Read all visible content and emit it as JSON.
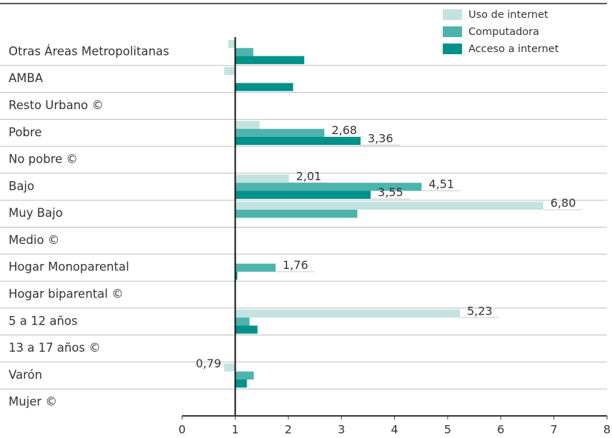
{
  "chart_data": {
    "type": "hbar",
    "categories": [
      "Otras Áreas Metropolitanas",
      "AMBA",
      "Resto Urbano ©",
      "Pobre",
      "No pobre ©",
      "Bajo",
      "Muy Bajo",
      "Medio ©",
      "Hogar Monoparental",
      "Hogar biparental ©",
      "5 a 12 años",
      "13 a 17 años ©",
      "Varón",
      "Mujer ©"
    ],
    "series": [
      {
        "name": "Uso de internet",
        "color": "#c3e2e0",
        "values": [
          0.87,
          0.79,
          null,
          1.46,
          null,
          2.01,
          6.8,
          null,
          1.02,
          null,
          5.23,
          null,
          0.79,
          null
        ],
        "value_labels": [
          null,
          null,
          null,
          null,
          null,
          "2,01",
          "6,80",
          null,
          null,
          null,
          "5,23",
          null,
          "0,79",
          null
        ]
      },
      {
        "name": "Computadora",
        "color": "#4db3ad",
        "values": [
          1.34,
          null,
          null,
          2.68,
          null,
          4.51,
          3.3,
          null,
          1.76,
          null,
          1.27,
          null,
          1.35,
          null
        ],
        "value_labels": [
          null,
          null,
          null,
          "2,68",
          null,
          "4,51",
          null,
          null,
          "1,76",
          null,
          null,
          null,
          null,
          null
        ]
      },
      {
        "name": "Acceso a internet",
        "color": "#00918a",
        "values": [
          2.3,
          2.09,
          null,
          3.36,
          null,
          3.55,
          null,
          null,
          1.04,
          null,
          1.42,
          null,
          1.22,
          null
        ],
        "value_labels": [
          null,
          null,
          null,
          "3,36",
          null,
          "3,55",
          null,
          null,
          null,
          null,
          null,
          null,
          null,
          null
        ]
      }
    ],
    "baseline": 1,
    "xlim": [
      0,
      8
    ],
    "xticks": [
      0,
      1,
      2,
      3,
      4,
      5,
      6,
      7,
      8
    ],
    "legend": "top-right"
  }
}
